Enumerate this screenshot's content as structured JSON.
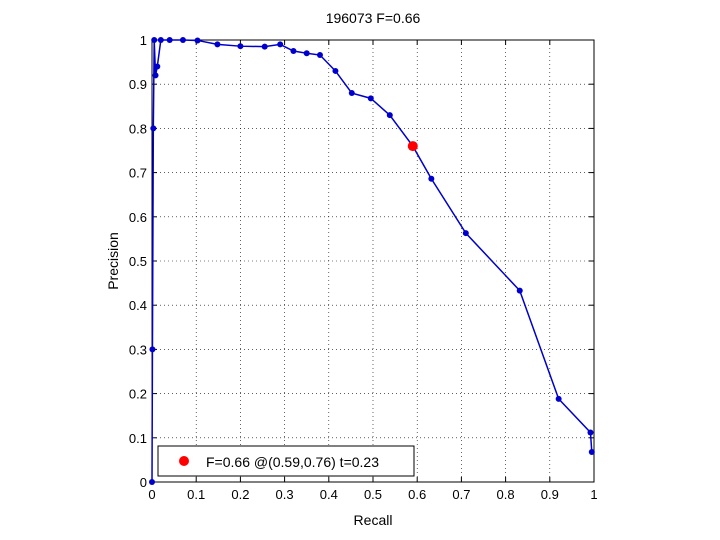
{
  "chart_data": {
    "type": "line",
    "title": "196073 F=0.66",
    "xlabel": "Recall",
    "ylabel": "Precision",
    "xlim": [
      0,
      1
    ],
    "ylim": [
      0,
      1
    ],
    "xticks": [
      0,
      0.1,
      0.2,
      0.3,
      0.4,
      0.5,
      0.6,
      0.7,
      0.8,
      0.9,
      1
    ],
    "yticks": [
      0,
      0.1,
      0.2,
      0.3,
      0.4,
      0.5,
      0.6,
      0.7,
      0.8,
      0.9,
      1
    ],
    "xtick_labels": [
      "0",
      "0.1",
      "0.2",
      "0.3",
      "0.4",
      "0.5",
      "0.6",
      "0.7",
      "0.8",
      "0.9",
      "1"
    ],
    "ytick_labels": [
      "0",
      "0.1",
      "0.2",
      "0.3",
      "0.4",
      "0.5",
      "0.6",
      "0.7",
      "0.8",
      "0.9",
      "1"
    ],
    "grid": true,
    "legend_position": "bottom-left",
    "colors": {
      "series": "#0000cc",
      "highlight": "#ff0000"
    },
    "series": [
      {
        "x": [
          0.0,
          0.001,
          0.003,
          0.005,
          0.008,
          0.012,
          0.02,
          0.04,
          0.07,
          0.103,
          0.148,
          0.2,
          0.255,
          0.29,
          0.32,
          0.35,
          0.38,
          0.415,
          0.452,
          0.495,
          0.538,
          0.59,
          0.632,
          0.71,
          0.832,
          0.92,
          0.992,
          0.995
        ],
        "y": [
          0.0,
          0.3,
          0.8,
          1.0,
          0.92,
          0.94,
          1.0,
          1.0,
          1.0,
          0.999,
          0.99,
          0.986,
          0.985,
          0.99,
          0.975,
          0.97,
          0.966,
          0.93,
          0.88,
          0.868,
          0.83,
          0.76,
          0.686,
          0.563,
          0.433,
          0.188,
          0.112,
          0.068
        ]
      }
    ],
    "highlight_point": {
      "x": 0.59,
      "y": 0.76
    },
    "legend": {
      "label": "F=0.66 @(0.59,0.76) t=0.23"
    }
  }
}
